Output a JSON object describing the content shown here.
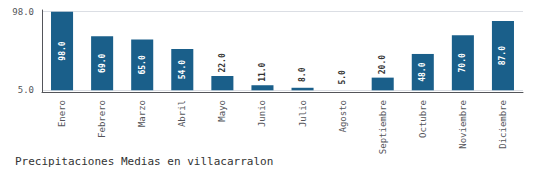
{
  "chart_data": {
    "type": "bar",
    "title": "Precipitaciones Medias en villacarralon",
    "categories": [
      "Enero",
      "Febrero",
      "Marzo",
      "Abril",
      "Mayo",
      "Junio",
      "Julio",
      "Agosto",
      "Septiembre",
      "Octubre",
      "Noviembre",
      "Diciembre"
    ],
    "values": [
      98.0,
      69.0,
      65.0,
      54.0,
      22.0,
      11.0,
      8.0,
      5.0,
      20.0,
      48.0,
      70.0,
      87.0
    ],
    "value_labels": [
      "98.0",
      "69.0",
      "65.0",
      "54.0",
      "22.0",
      "11.0",
      "8.0",
      "5.0",
      "20.0",
      "48.0",
      "70.0",
      "87.0"
    ],
    "data_labels": true,
    "color": "#1a5f8a",
    "ylim": [
      3.0,
      100.0
    ],
    "yticks": [
      {
        "value": 5.0,
        "label": "5.0"
      },
      {
        "value": 98.0,
        "label": "98.0"
      }
    ],
    "grid": true
  }
}
